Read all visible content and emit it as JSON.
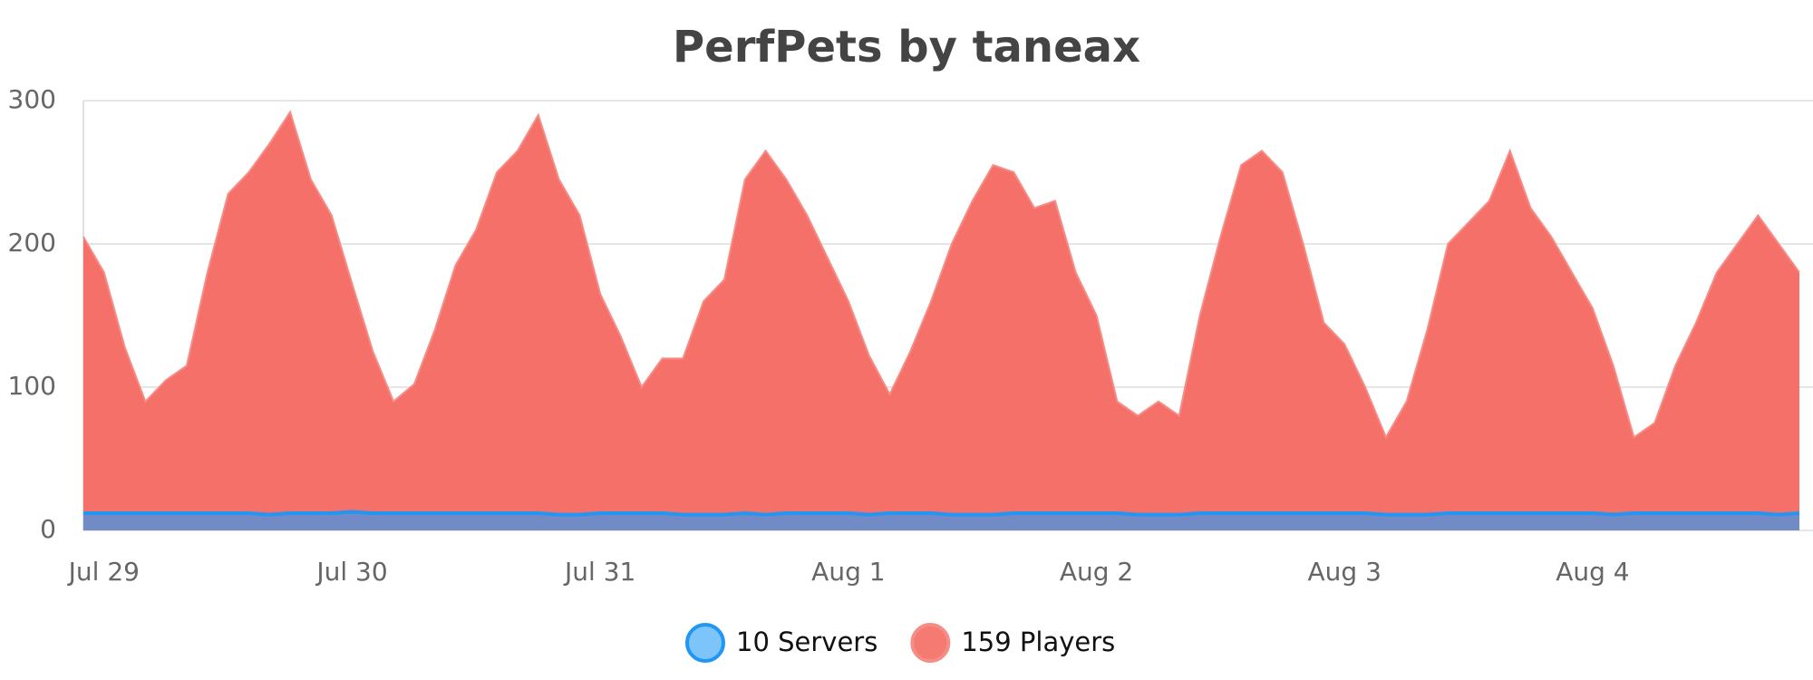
{
  "chart_data": {
    "type": "area",
    "title": "PerfPets by taneax",
    "categories": [
      null,
      "Jul 29",
      null,
      null,
      null,
      null,
      null,
      null,
      null,
      null,
      null,
      null,
      null,
      "Jul 30",
      null,
      null,
      null,
      null,
      null,
      null,
      null,
      null,
      null,
      null,
      null,
      "Jul 31",
      null,
      null,
      null,
      null,
      null,
      null,
      null,
      null,
      null,
      null,
      null,
      "Aug 1",
      null,
      null,
      null,
      null,
      null,
      null,
      null,
      null,
      null,
      null,
      null,
      "Aug 2",
      null,
      null,
      null,
      null,
      null,
      null,
      null,
      null,
      null,
      null,
      null,
      "Aug 3",
      null,
      null,
      null,
      null,
      null,
      null,
      null,
      null,
      null,
      null,
      null,
      "Aug 4",
      null,
      null,
      null,
      null,
      null,
      null,
      null,
      null,
      null,
      null
    ],
    "series": [
      {
        "name": "159 Players",
        "color": "#f6706a",
        "stroke": "#f58c86",
        "legend_color": "#f47a72",
        "values": [
          205,
          180,
          128,
          90,
          105,
          115,
          180,
          235,
          250,
          270,
          292,
          245,
          220,
          172,
          125,
          90,
          102,
          140,
          185,
          210,
          250,
          265,
          290,
          245,
          220,
          165,
          135,
          100,
          120,
          120,
          160,
          175,
          245,
          265,
          245,
          220,
          190,
          160,
          122,
          95,
          125,
          160,
          200,
          230,
          255,
          250,
          225,
          230,
          180,
          150,
          90,
          80,
          90,
          80,
          150,
          205,
          255,
          265,
          250,
          200,
          145,
          130,
          100,
          65,
          90,
          140,
          200,
          215,
          230,
          265,
          225,
          205,
          180,
          155,
          115,
          65,
          75,
          115,
          145,
          180,
          200,
          220,
          200,
          180
        ]
      },
      {
        "name": "10 Servers",
        "color": "#5b8fd6",
        "stroke": "#2196f3",
        "legend_color": "#7cc4fa",
        "values": [
          12,
          12,
          12,
          12,
          12,
          12,
          12,
          12,
          12,
          11,
          12,
          12,
          12,
          13,
          12,
          12,
          12,
          12,
          12,
          12,
          12,
          12,
          12,
          11,
          11,
          12,
          12,
          12,
          12,
          11,
          11,
          11,
          12,
          11,
          12,
          12,
          12,
          12,
          11,
          12,
          12,
          12,
          11,
          11,
          11,
          12,
          12,
          12,
          12,
          12,
          12,
          11,
          11,
          11,
          12,
          12,
          12,
          12,
          12,
          12,
          12,
          12,
          12,
          11,
          11,
          11,
          12,
          12,
          12,
          12,
          12,
          12,
          12,
          12,
          11,
          12,
          12,
          12,
          12,
          12,
          12,
          12,
          11,
          12
        ]
      }
    ],
    "ylim": [
      0,
      300
    ],
    "yticks": [
      0,
      100,
      200,
      300
    ],
    "grid": true,
    "legend_position": "bottom"
  }
}
